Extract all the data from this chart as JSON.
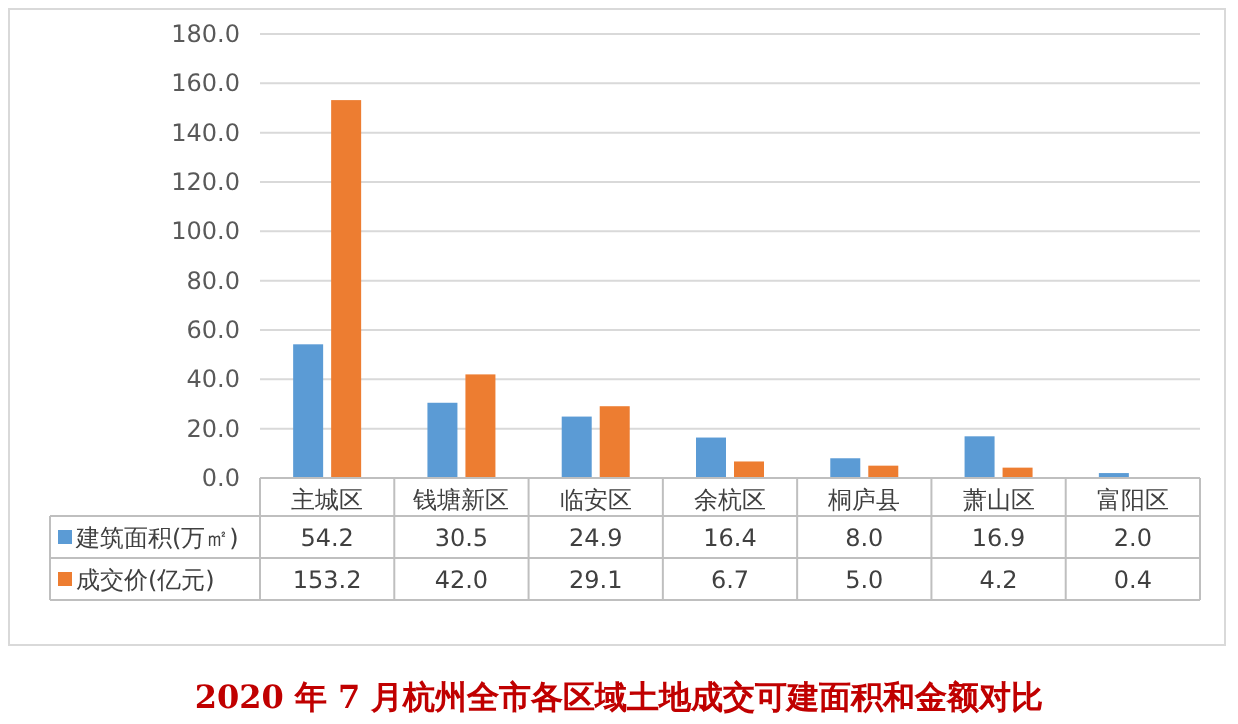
{
  "chart_data": {
    "type": "bar",
    "title": "2020 年 7 月杭州全市各区域土地成交可建面积和金额对比",
    "categories": [
      "主城区",
      "钱塘新区",
      "临安区",
      "余杭区",
      "桐庐县",
      "萧山区",
      "富阳区"
    ],
    "series": [
      {
        "name": "建筑面积(万㎡)",
        "color": "#5b9bd5",
        "values": [
          54.2,
          30.5,
          24.9,
          16.4,
          8.0,
          16.9,
          2.0
        ],
        "value_labels": [
          "54.2",
          "30.5",
          "24.9",
          "16.4",
          "8.0",
          "16.9",
          "2.0"
        ]
      },
      {
        "name": "成交价(亿元)",
        "color": "#ed7d31",
        "values": [
          153.2,
          42.0,
          29.1,
          6.7,
          5.0,
          4.2,
          0.4
        ],
        "value_labels": [
          "153.2",
          "42.0",
          "29.1",
          "6.7",
          "5.0",
          "4.2",
          "0.4"
        ]
      }
    ],
    "ylim": [
      0,
      180
    ],
    "yticks": [
      {
        "value": 0,
        "label": "0.0"
      },
      {
        "value": 20,
        "label": "20.0"
      },
      {
        "value": 40,
        "label": "40.0"
      },
      {
        "value": 60,
        "label": "60.0"
      },
      {
        "value": 80,
        "label": "80.0"
      },
      {
        "value": 100,
        "label": "100.0"
      },
      {
        "value": 120,
        "label": "120.0"
      },
      {
        "value": 140,
        "label": "140.0"
      },
      {
        "value": 160,
        "label": "160.0"
      },
      {
        "value": 180,
        "label": "180.0"
      }
    ],
    "grid": "y",
    "legend": "bottom"
  }
}
